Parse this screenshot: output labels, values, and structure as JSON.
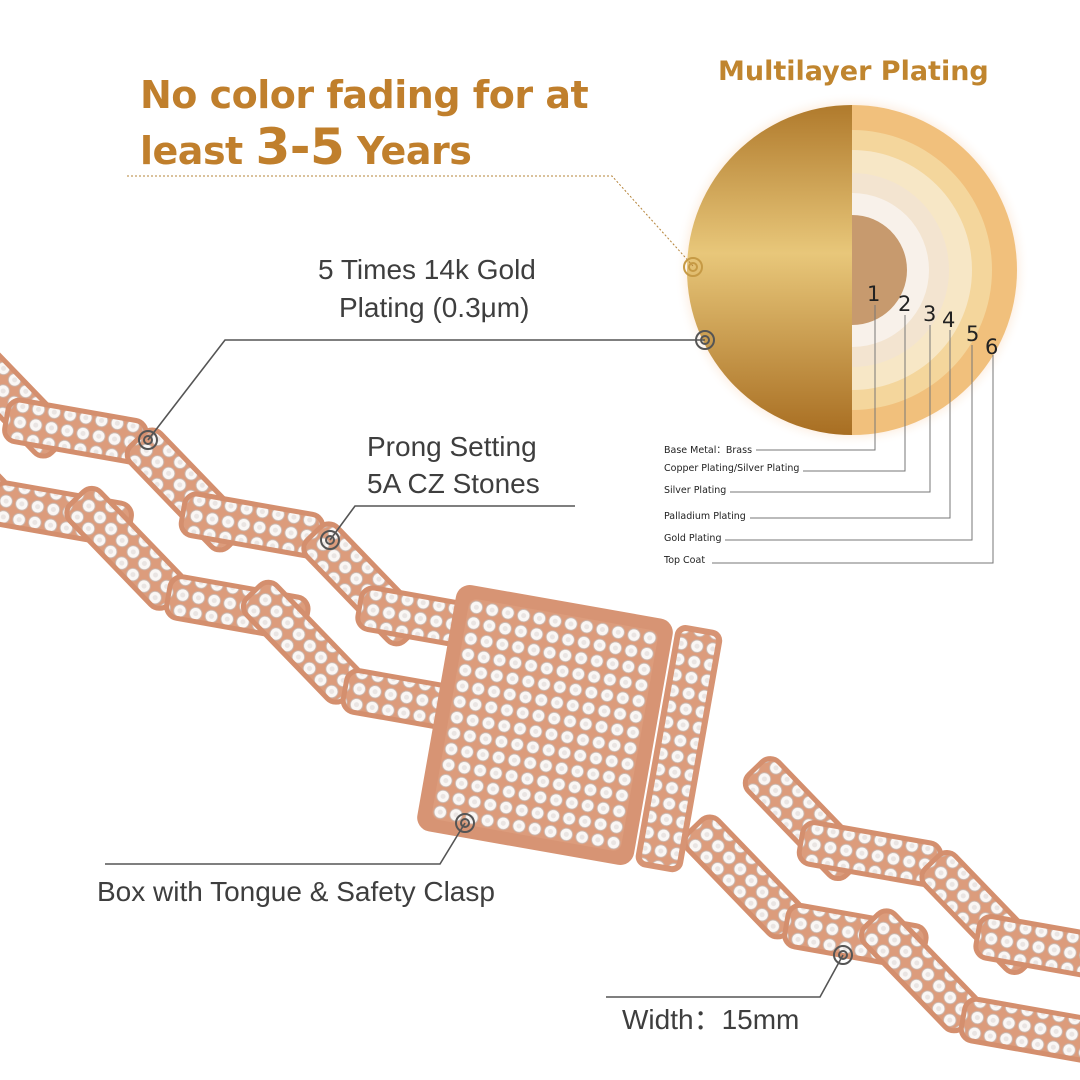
{
  "headline": {
    "line1": "No color fading for at",
    "line2_pre": "least ",
    "line2_big": "3-5",
    "line2_post": " Years"
  },
  "plating": {
    "title": "Multilayer Plating",
    "numbers": [
      "1",
      "2",
      "3",
      "4",
      "5",
      "6"
    ],
    "layers": [
      "Base Metal：Brass",
      "Copper Plating/Silver Plating",
      "Silver Plating",
      "Palladium Plating",
      "Gold Plating",
      "Top Coat"
    ]
  },
  "callouts": {
    "gold_line1": "5 Times 14k Gold",
    "gold_line2": "Plating (0.3μm)",
    "prong_line1": "Prong Setting",
    "prong_line2": "5A CZ Stones",
    "clasp": "Box with Tongue & Safety Clasp",
    "width": "Width：15mm"
  },
  "colors": {
    "accent": "#c07f2c",
    "rose_gold": "#e4a482",
    "text": "#3e3e3e"
  }
}
